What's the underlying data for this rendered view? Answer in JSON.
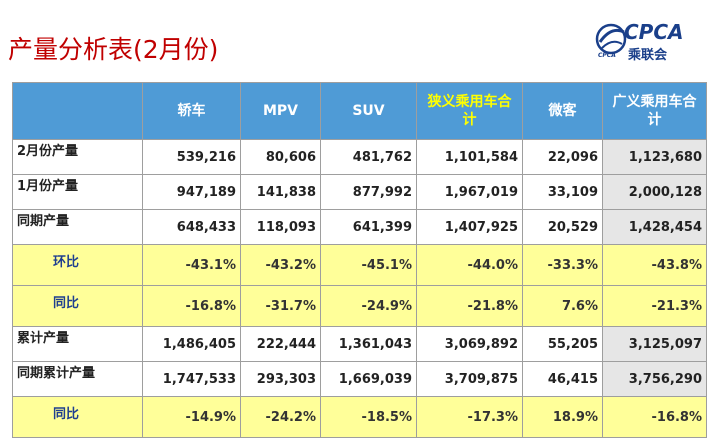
{
  "header": {
    "title": "产量分析表(2月份)",
    "logo_text": "CPCA",
    "logo_cn": "乘联会",
    "logo_small": "CPCA"
  },
  "table": {
    "columns": [
      "",
      "轿车",
      "MPV",
      "SUV",
      "狭义乘用车合计",
      "微客",
      "广义乘用车合计"
    ],
    "rows": [
      {
        "label": "2月份产量",
        "values": [
          "539,216",
          "80,606",
          "481,762",
          "1,101,584",
          "22,096",
          "1,123,680"
        ],
        "kind": "count"
      },
      {
        "label": "1月份产量",
        "values": [
          "947,189",
          "141,838",
          "877,992",
          "1,967,019",
          "33,109",
          "2,000,128"
        ],
        "kind": "count"
      },
      {
        "label": "同期产量",
        "values": [
          "648,433",
          "118,093",
          "641,399",
          "1,407,925",
          "20,529",
          "1,428,454"
        ],
        "kind": "count"
      },
      {
        "label": "环比",
        "values": [
          "-43.1%",
          "-43.2%",
          "-45.1%",
          "-44.0%",
          "-33.3%",
          "-43.8%"
        ],
        "kind": "pct"
      },
      {
        "label": "同比",
        "values": [
          "-16.8%",
          "-31.7%",
          "-24.9%",
          "-21.8%",
          "7.6%",
          "-21.3%"
        ],
        "kind": "pct"
      },
      {
        "label": "累计产量",
        "values": [
          "1,486,405",
          "222,444",
          "1,361,043",
          "3,069,892",
          "55,205",
          "3,125,097"
        ],
        "kind": "count"
      },
      {
        "label": "同期累计产量",
        "values": [
          "1,747,533",
          "293,303",
          "1,669,039",
          "3,709,875",
          "46,415",
          "3,756,290"
        ],
        "kind": "count"
      },
      {
        "label": "同比",
        "values": [
          "-14.9%",
          "-24.2%",
          "-18.5%",
          "-17.3%",
          "18.9%",
          "-16.8%"
        ],
        "kind": "pct"
      }
    ]
  },
  "colors": {
    "title": "#c00000",
    "header_bg": "#4f9bd6",
    "header_highlight_text": "#ffff00",
    "pct_row_bg": "#ffff99",
    "last_col_bg": "#e6e6e6"
  }
}
